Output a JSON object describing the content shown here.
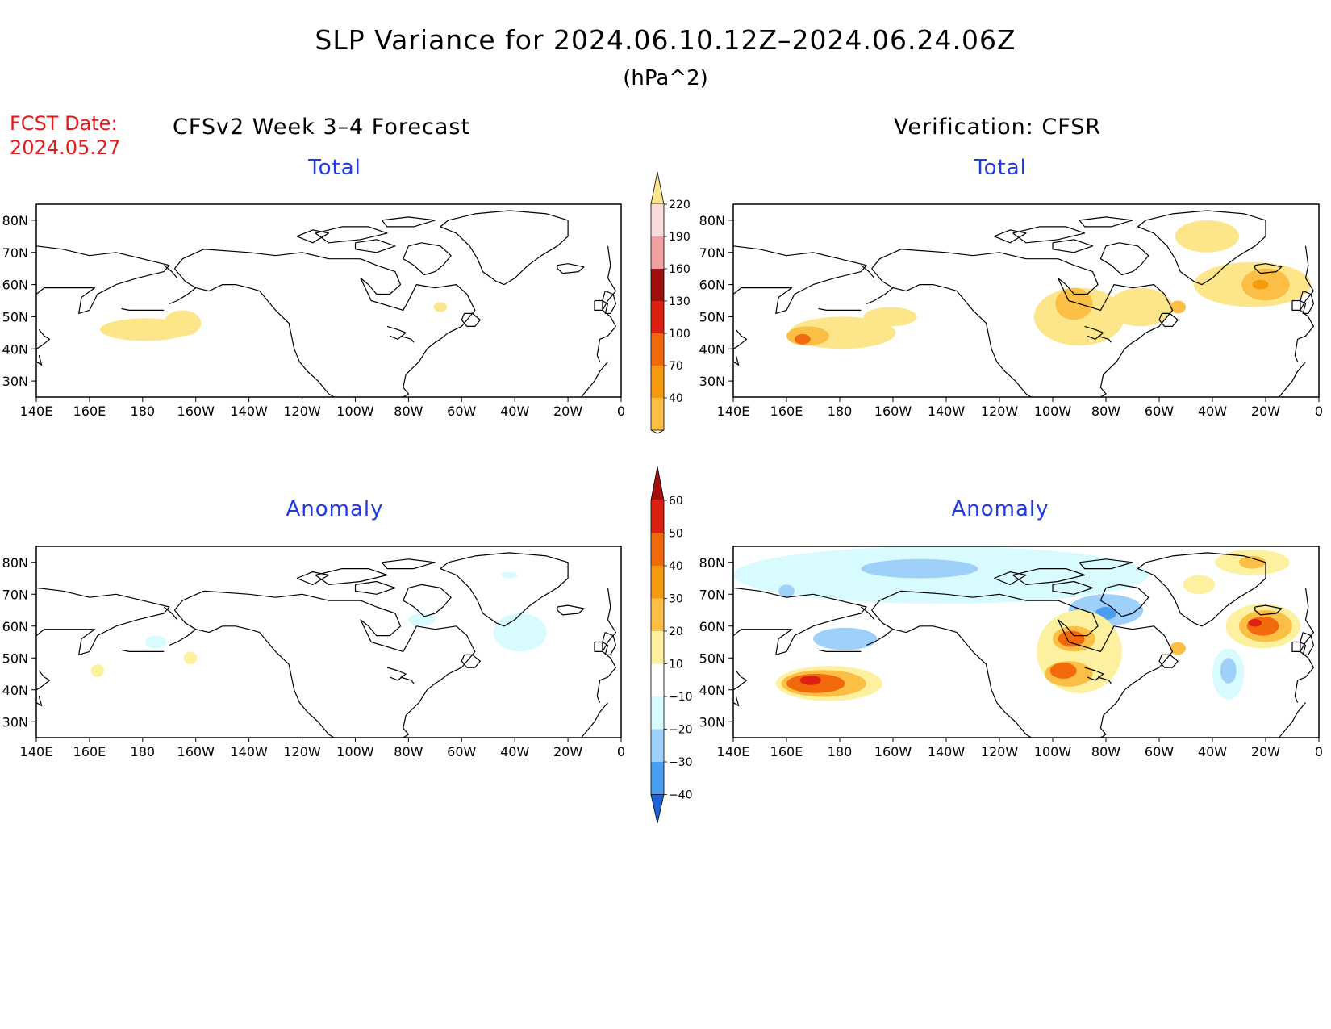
{
  "title": "SLP Variance for 2024.06.10.12Z–2024.06.24.06Z",
  "units": "(hPa^2)",
  "fcst_date_label": "FCST Date:",
  "fcst_date": "2024.05.27",
  "left_header": "CFSv2 Week 3–4 Forecast",
  "right_header": "Verification: CFSR",
  "panel_titles": {
    "forecast_total": "Total",
    "verification_total": "Total",
    "forecast_anomaly": "Anomaly",
    "verification_anomaly": "Anomaly"
  },
  "lat_ticks": [
    "80N",
    "70N",
    "60N",
    "50N",
    "40N",
    "30N"
  ],
  "lon_ticks": [
    "140E",
    "160E",
    "180",
    "160W",
    "140W",
    "120W",
    "100W",
    "80W",
    "60W",
    "40W",
    "20W",
    "0"
  ],
  "map_extent": {
    "lon_min": 140,
    "lon_max": 360,
    "lat_min": 25,
    "lat_max": 85
  },
  "total_colorbar": {
    "labels": [
      "40",
      "70",
      "100",
      "130",
      "160",
      "190",
      "220"
    ],
    "colors": [
      "#fde68a",
      "#fbbf46",
      "#f59b0b",
      "#f2690c",
      "#dc2011",
      "#a00e0e",
      "#f0a0a0",
      "#fbdada"
    ]
  },
  "anomaly_colorbar": {
    "labels": [
      "60",
      "50",
      "40",
      "30",
      "20",
      "10",
      "−10",
      "−20",
      "−30",
      "−40"
    ],
    "colors": [
      "#a50f0f",
      "#dc2011",
      "#f2690c",
      "#f59b0b",
      "#fbbf46",
      "#fdf1a0",
      "#ffffff",
      "#d7fbff",
      "#9fd0fa",
      "#4a9ef0",
      "#1f62d6"
    ]
  },
  "contours": {
    "forecast_total": [
      {
        "lon": 181,
        "lat": 46,
        "rx": 17,
        "ry": 3.5,
        "color": "#fde68a"
      },
      {
        "lon": 195,
        "lat": 48,
        "rx": 7,
        "ry": 4,
        "color": "#fde68a"
      },
      {
        "lon": 292,
        "lat": 53,
        "rx": 2.5,
        "ry": 1.5,
        "color": "#fde68a"
      }
    ],
    "verification_total": [
      {
        "lon": 181,
        "lat": 45,
        "rx": 20,
        "ry": 5,
        "color": "#fde68a"
      },
      {
        "lon": 199,
        "lat": 50,
        "rx": 10,
        "ry": 3,
        "color": "#fde68a"
      },
      {
        "lon": 168,
        "lat": 44,
        "rx": 8,
        "ry": 3,
        "color": "#fbbf46"
      },
      {
        "lon": 166,
        "lat": 43,
        "rx": 3,
        "ry": 1.6,
        "color": "#f2690c"
      },
      {
        "lon": 270,
        "lat": 50,
        "rx": 17,
        "ry": 9,
        "color": "#fde68a"
      },
      {
        "lon": 293,
        "lat": 53,
        "rx": 12,
        "ry": 6,
        "color": "#fde68a"
      },
      {
        "lon": 335,
        "lat": 60,
        "rx": 22,
        "ry": 7,
        "color": "#fde68a"
      },
      {
        "lon": 318,
        "lat": 75,
        "rx": 12,
        "ry": 5,
        "color": "#fde68a"
      },
      {
        "lon": 268,
        "lat": 54,
        "rx": 7,
        "ry": 5,
        "color": "#fbbf46"
      },
      {
        "lon": 307,
        "lat": 53,
        "rx": 3,
        "ry": 2,
        "color": "#fbbf46"
      },
      {
        "lon": 340,
        "lat": 60,
        "rx": 9,
        "ry": 5,
        "color": "#fbbf46"
      },
      {
        "lon": 338,
        "lat": 60,
        "rx": 3,
        "ry": 1.5,
        "color": "#f59b0b"
      }
    ],
    "forecast_anomaly": [
      {
        "lon": 163,
        "lat": 46,
        "rx": 2.5,
        "ry": 2,
        "color": "#fdf1a0"
      },
      {
        "lon": 198,
        "lat": 50,
        "rx": 2.5,
        "ry": 2,
        "color": "#fdf1a0"
      },
      {
        "lon": 185,
        "lat": 55,
        "rx": 4,
        "ry": 2,
        "color": "#d7fbff"
      },
      {
        "lon": 322,
        "lat": 58,
        "rx": 10,
        "ry": 6,
        "color": "#d7fbff"
      },
      {
        "lon": 285,
        "lat": 62,
        "rx": 5,
        "ry": 2,
        "color": "#d7fbff"
      },
      {
        "lon": 318,
        "lat": 76,
        "rx": 3,
        "ry": 1,
        "color": "#d7fbff"
      }
    ],
    "verification_anomaly": [
      {
        "lon": 218,
        "lat": 76,
        "rx": 78,
        "ry": 9,
        "color": "#d7fbff"
      },
      {
        "lon": 210,
        "lat": 78,
        "rx": 22,
        "ry": 3,
        "color": "#9fd0fa"
      },
      {
        "lon": 182,
        "lat": 56,
        "rx": 12,
        "ry": 3.5,
        "color": "#9fd0fa"
      },
      {
        "lon": 160,
        "lat": 71,
        "rx": 3,
        "ry": 2,
        "color": "#9fd0fa"
      },
      {
        "lon": 280,
        "lat": 65,
        "rx": 14,
        "ry": 5,
        "color": "#9fd0fa"
      },
      {
        "lon": 280,
        "lat": 64,
        "rx": 4,
        "ry": 2,
        "color": "#4a9ef0"
      },
      {
        "lon": 326,
        "lat": 45,
        "rx": 6,
        "ry": 8,
        "color": "#d7fbff"
      },
      {
        "lon": 326,
        "lat": 46,
        "rx": 3,
        "ry": 4,
        "color": "#9fd0fa"
      },
      {
        "lon": 176,
        "lat": 42,
        "rx": 20,
        "ry": 5.5,
        "color": "#fdf1a0"
      },
      {
        "lon": 174,
        "lat": 42,
        "rx": 16,
        "ry": 4.2,
        "color": "#fbbf46"
      },
      {
        "lon": 171,
        "lat": 42,
        "rx": 11,
        "ry": 3,
        "color": "#f2690c"
      },
      {
        "lon": 169,
        "lat": 43,
        "rx": 4,
        "ry": 1.5,
        "color": "#dc2011"
      },
      {
        "lon": 270,
        "lat": 52,
        "rx": 16,
        "ry": 13,
        "color": "#fdf1a0"
      },
      {
        "lon": 268,
        "lat": 56,
        "rx": 8,
        "ry": 4,
        "color": "#fbbf46"
      },
      {
        "lon": 266,
        "lat": 45,
        "rx": 9,
        "ry": 4,
        "color": "#fbbf46"
      },
      {
        "lon": 267,
        "lat": 56,
        "rx": 5,
        "ry": 2.5,
        "color": "#f2690c"
      },
      {
        "lon": 264,
        "lat": 46,
        "rx": 5,
        "ry": 2.5,
        "color": "#f2690c"
      },
      {
        "lon": 307,
        "lat": 53,
        "rx": 3,
        "ry": 2,
        "color": "#fbbf46"
      },
      {
        "lon": 339,
        "lat": 60,
        "rx": 14,
        "ry": 7,
        "color": "#fdf1a0"
      },
      {
        "lon": 340,
        "lat": 60,
        "rx": 10,
        "ry": 5,
        "color": "#fbbf46"
      },
      {
        "lon": 339,
        "lat": 60,
        "rx": 6,
        "ry": 3,
        "color": "#f2690c"
      },
      {
        "lon": 336,
        "lat": 61,
        "rx": 2.5,
        "ry": 1.2,
        "color": "#dc2011"
      },
      {
        "lon": 315,
        "lat": 73,
        "rx": 6,
        "ry": 3,
        "color": "#fdf1a0"
      },
      {
        "lon": 335,
        "lat": 80,
        "rx": 14,
        "ry": 4,
        "color": "#fdf1a0"
      },
      {
        "lon": 335,
        "lat": 80,
        "rx": 5,
        "ry": 2,
        "color": "#fbbf46"
      }
    ]
  }
}
